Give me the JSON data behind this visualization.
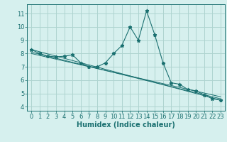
{
  "xlabel": "Humidex (Indice chaleur)",
  "background_color": "#d6f0ee",
  "grid_color": "#aed4d0",
  "line_color": "#1a7070",
  "xlim": [
    -0.5,
    23.5
  ],
  "ylim": [
    3.7,
    11.7
  ],
  "yticks": [
    4,
    5,
    6,
    7,
    8,
    9,
    10,
    11
  ],
  "xticks": [
    0,
    1,
    2,
    3,
    4,
    5,
    6,
    7,
    8,
    9,
    10,
    11,
    12,
    13,
    14,
    15,
    16,
    17,
    18,
    19,
    20,
    21,
    22,
    23
  ],
  "series": [
    [
      0,
      8.3
    ],
    [
      1,
      8.0
    ],
    [
      2,
      7.8
    ],
    [
      3,
      7.75
    ],
    [
      4,
      7.8
    ],
    [
      5,
      7.9
    ],
    [
      6,
      7.3
    ],
    [
      7,
      7.0
    ],
    [
      8,
      7.0
    ],
    [
      9,
      7.3
    ],
    [
      10,
      8.0
    ],
    [
      11,
      8.6
    ],
    [
      12,
      10.0
    ],
    [
      13,
      9.0
    ],
    [
      14,
      11.2
    ],
    [
      15,
      9.4
    ],
    [
      16,
      7.3
    ],
    [
      17,
      5.8
    ],
    [
      18,
      5.7
    ],
    [
      19,
      5.3
    ],
    [
      20,
      5.2
    ],
    [
      21,
      4.9
    ],
    [
      22,
      4.6
    ],
    [
      23,
      4.5
    ]
  ],
  "trend_series": [
    [
      [
        0,
        8.3
      ],
      [
        23,
        4.5
      ]
    ],
    [
      [
        0,
        8.1
      ],
      [
        23,
        4.6
      ]
    ],
    [
      [
        0,
        8.0
      ],
      [
        23,
        4.75
      ]
    ]
  ],
  "tick_fontsize": 6,
  "xlabel_fontsize": 7
}
